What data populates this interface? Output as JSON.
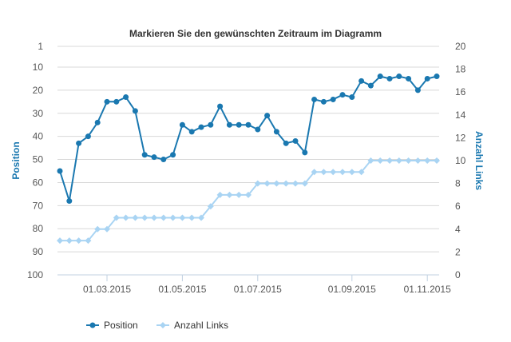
{
  "chart_data": {
    "type": "line",
    "title": "Markieren Sie den gewünschten Zeitraum im Diagramm",
    "y_left": {
      "label": "Position",
      "reversed": true,
      "range": [
        1,
        100
      ],
      "ticks": [
        "1",
        "10",
        "20",
        "30",
        "40",
        "50",
        "60",
        "70",
        "80",
        "90",
        "100"
      ],
      "tick_values": [
        1,
        10,
        20,
        30,
        40,
        50,
        60,
        70,
        80,
        90,
        100
      ]
    },
    "y_right": {
      "label": "Anzahl Links",
      "range": [
        0,
        20
      ],
      "ticks": [
        "0",
        "2",
        "4",
        "6",
        "8",
        "10",
        "12",
        "14",
        "16",
        "18",
        "20"
      ],
      "tick_values": [
        0,
        2,
        4,
        6,
        8,
        10,
        12,
        14,
        16,
        18,
        20
      ]
    },
    "x_axis": {
      "ticks": [
        "01.03.2015",
        "01.05.2015",
        "01.07.2015",
        "01.09.2015",
        "01.11.2015"
      ],
      "tick_index": [
        5,
        13,
        21,
        31,
        39
      ]
    },
    "grid": true,
    "legend": "bottom-left",
    "series": [
      {
        "name": "Position",
        "color": "#1a78b0",
        "axis": "left",
        "values": [
          55,
          68,
          43,
          40,
          34,
          25,
          25,
          23,
          29,
          48,
          49,
          50,
          48,
          35,
          38,
          36,
          35,
          27,
          35,
          35,
          35,
          37,
          31,
          38,
          43,
          42,
          47,
          24,
          25,
          24,
          22,
          23,
          16,
          18,
          14,
          15,
          14,
          15,
          20,
          15,
          14
        ]
      },
      {
        "name": "Anzahl Links",
        "color": "#a9d4f3",
        "axis": "right",
        "values": [
          3,
          3,
          3,
          3,
          4,
          4,
          5,
          5,
          5,
          5,
          5,
          5,
          5,
          5,
          5,
          5,
          6,
          7,
          7,
          7,
          7,
          8,
          8,
          8,
          8,
          8,
          8,
          9,
          9,
          9,
          9,
          9,
          9,
          10,
          10,
          10,
          10,
          10,
          10,
          10,
          10
        ]
      }
    ]
  }
}
